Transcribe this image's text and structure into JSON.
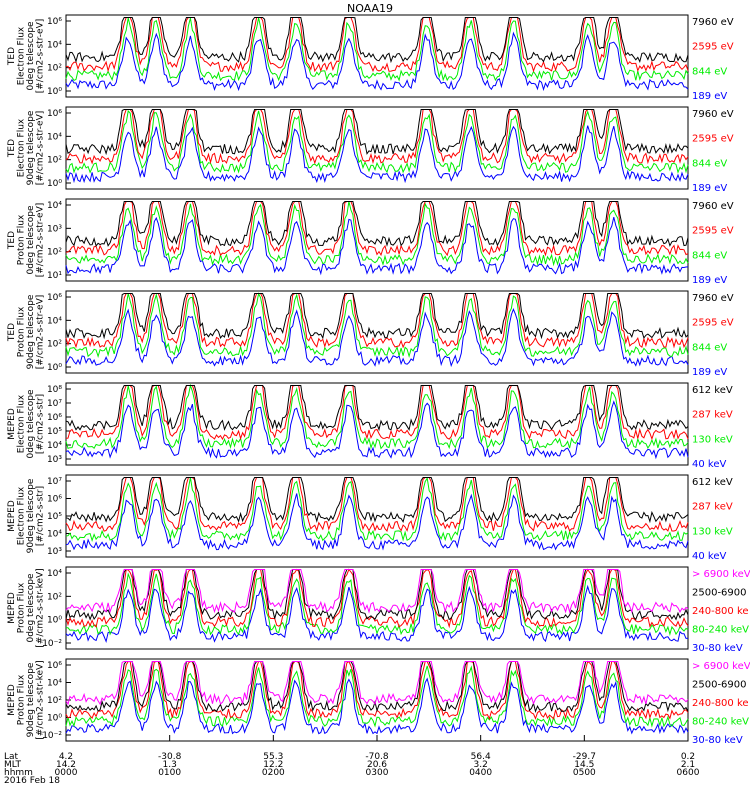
{
  "title": "NOAA19",
  "colors": {
    "black": "#000000",
    "red": "#ff0000",
    "green": "#00ee00",
    "blue": "#0000ff",
    "magenta": "#ff00ff"
  },
  "footer": {
    "row_labels": [
      "Lat",
      "MLT",
      "hhmm",
      "2016 Feb 18"
    ],
    "lat": [
      "4.2",
      "-30.8",
      "55.3",
      "-70.8",
      "56.4",
      "-29.7",
      "0.2"
    ],
    "mlt": [
      "14.2",
      "1.3",
      "12.2",
      "20.6",
      "3.2",
      "14.5",
      "2.1"
    ],
    "hhmm": [
      "0000",
      "0100",
      "0200",
      "0300",
      "0400",
      "0500",
      "0600"
    ]
  },
  "chart_data": [
    {
      "type": "line",
      "ylabel": [
        "TED",
        "Electron Flux",
        "0deg telescope",
        "[#/cm2-s-str-eV]"
      ],
      "scale": "log",
      "ylim_exp": [
        0,
        6
      ],
      "yticks": [
        "10⁰",
        "10²",
        "10⁴",
        "10⁶"
      ],
      "legend": [
        {
          "label": "7960 eV",
          "color": "#000000"
        },
        {
          "label": "2595 eV",
          "color": "#ff0000"
        },
        {
          "label": "844 eV",
          "color": "#00ee00"
        },
        {
          "label": "189 eV",
          "color": "#0000ff"
        }
      ],
      "x_hours": [
        0,
        6
      ]
    },
    {
      "type": "line",
      "ylabel": [
        "TED",
        "Electron Flux",
        "90deg telescope",
        "[#/cm2-s-str-eV]"
      ],
      "scale": "log",
      "ylim_exp": [
        0,
        6
      ],
      "yticks": [
        "10⁰",
        "10²",
        "10⁴",
        "10⁶"
      ],
      "legend": [
        {
          "label": "7960 eV",
          "color": "#000000"
        },
        {
          "label": "2595 eV",
          "color": "#ff0000"
        },
        {
          "label": "844 eV",
          "color": "#00ee00"
        },
        {
          "label": "189 eV",
          "color": "#0000ff"
        }
      ],
      "x_hours": [
        0,
        6
      ]
    },
    {
      "type": "line",
      "ylabel": [
        "TED",
        "Proton Flux",
        "0deg telescope",
        "[#/cm2-s-str-eV]"
      ],
      "scale": "log",
      "ylim_exp": [
        0,
        5
      ],
      "yticks": [
        "10¹",
        "10²",
        "10³",
        "10⁴"
      ],
      "legend": [
        {
          "label": "7960 eV",
          "color": "#000000"
        },
        {
          "label": "2595 eV",
          "color": "#ff0000"
        },
        {
          "label": "844 eV",
          "color": "#00ee00"
        },
        {
          "label": "189 eV",
          "color": "#0000ff"
        }
      ],
      "x_hours": [
        0,
        6
      ]
    },
    {
      "type": "line",
      "ylabel": [
        "TED",
        "Proton Flux",
        "90deg telescope",
        "[#/cm2-s-str-eV]"
      ],
      "scale": "log",
      "ylim_exp": [
        0,
        6
      ],
      "yticks": [
        "10⁰",
        "10²",
        "10⁴",
        "10⁶"
      ],
      "legend": [
        {
          "label": "7960 eV",
          "color": "#000000"
        },
        {
          "label": "2595 eV",
          "color": "#ff0000"
        },
        {
          "label": "844 eV",
          "color": "#00ee00"
        },
        {
          "label": "189 eV",
          "color": "#0000ff"
        }
      ],
      "x_hours": [
        0,
        6
      ]
    },
    {
      "type": "line",
      "ylabel": [
        "MEPED",
        "Electron Flux",
        "0deg telescope",
        "[#/cm2-s-str]"
      ],
      "scale": "log",
      "ylim_exp": [
        2,
        8
      ],
      "yticks": [
        "10³",
        "10⁴",
        "10⁵",
        "10⁶",
        "10⁷",
        "10⁸"
      ],
      "legend": [
        {
          "label": "612 keV",
          "color": "#000000"
        },
        {
          "label": "287 keV",
          "color": "#ff0000"
        },
        {
          "label": "130 keV",
          "color": "#00ee00"
        },
        {
          "label": "40 keV",
          "color": "#0000ff"
        }
      ],
      "x_hours": [
        0,
        6
      ]
    },
    {
      "type": "line",
      "ylabel": [
        "MEPED",
        "Electron Flux",
        "90deg telescope",
        "[#/cm2-s-str]"
      ],
      "scale": "log",
      "ylim_exp": [
        2,
        7
      ],
      "yticks": [
        "10³",
        "10⁴",
        "10⁵",
        "10⁶",
        "10⁷"
      ],
      "legend": [
        {
          "label": "612 keV",
          "color": "#000000"
        },
        {
          "label": "287 keV",
          "color": "#ff0000"
        },
        {
          "label": "130 keV",
          "color": "#00ee00"
        },
        {
          "label": "40 keV",
          "color": "#0000ff"
        }
      ],
      "x_hours": [
        0,
        6
      ]
    },
    {
      "type": "line",
      "ylabel": [
        "MEPED",
        "Proton Flux",
        "0deg telescope",
        "[#/cm2-s-str-keV]"
      ],
      "scale": "log",
      "ylim_exp": [
        -2,
        5
      ],
      "yticks": [
        "10⁻²",
        "10⁰",
        "10²",
        "10⁴"
      ],
      "legend": [
        {
          "label": "> 6900 keV",
          "color": "#ff00ff"
        },
        {
          "label": "2500-6900",
          "color": "#000000"
        },
        {
          "label": "240-800 ke",
          "color": "#ff0000"
        },
        {
          "label": "80-240 keV",
          "color": "#00ee00"
        },
        {
          "label": "30-80 keV",
          "color": "#0000ff"
        }
      ],
      "x_hours": [
        0,
        6
      ]
    },
    {
      "type": "line",
      "ylabel": [
        "MEPED",
        "Proton Flux",
        "90deg telescope",
        "[#/cm2-s-str-keV]"
      ],
      "scale": "log",
      "ylim_exp": [
        -2,
        6
      ],
      "yticks": [
        "10⁻²",
        "10⁰",
        "10²",
        "10⁴",
        "10⁶"
      ],
      "legend": [
        {
          "label": "> 6900 keV",
          "color": "#ff00ff"
        },
        {
          "label": "2500-6900",
          "color": "#000000"
        },
        {
          "label": "240-800 ke",
          "color": "#ff0000"
        },
        {
          "label": "80-240 keV",
          "color": "#00ee00"
        },
        {
          "label": "30-80 keV",
          "color": "#0000ff"
        }
      ],
      "x_hours": [
        0,
        6
      ]
    }
  ]
}
